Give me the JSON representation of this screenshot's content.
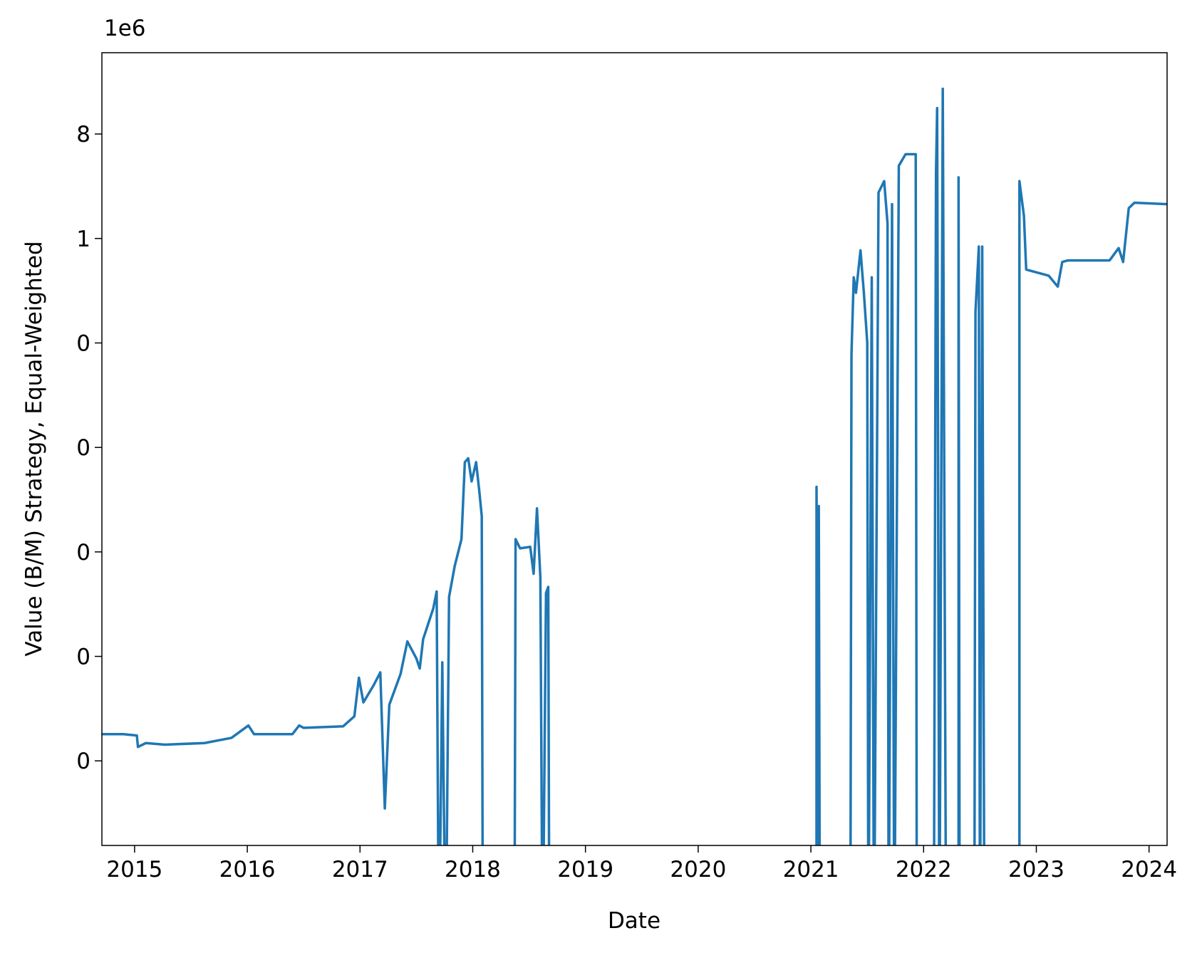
{
  "chart_data": {
    "type": "line",
    "x_label": "Date",
    "y_label": "Value (B/M) Strategy, Equal-Weighted",
    "y_offset_label": "1e6",
    "y_scale": "log",
    "grid": false,
    "xlim": [
      2014.71,
      2024.16
    ],
    "xticks": [
      2015,
      2016,
      2017,
      2018,
      2019,
      2020,
      2021,
      2022,
      2023,
      2024
    ],
    "ylim": [
      1.55,
      60000000
    ],
    "yticks": [
      {
        "value": 10,
        "label": "0"
      },
      {
        "value": 100,
        "label": "0"
      },
      {
        "value": 1000,
        "label": "0"
      },
      {
        "value": 10000,
        "label": "0"
      },
      {
        "value": 100000,
        "label": "0"
      },
      {
        "value": 1000000,
        "label": "1"
      },
      {
        "value": 10000000,
        "label": "8"
      }
    ],
    "series": [
      {
        "color": "#1f77b4",
        "x": [
          2014.71,
          2014.9,
          2015.02,
          2015.03,
          2015.1,
          2015.27,
          2015.62,
          2015.86,
          2016.01,
          2016.06,
          2016.4,
          2016.46,
          2016.5,
          2016.85,
          2016.95,
          2016.99,
          2017.03,
          2017.12,
          2017.18,
          2017.22,
          2017.26,
          2017.36,
          2017.42,
          2017.5,
          2017.53,
          2017.56,
          2017.65,
          2017.68,
          2017.7,
          2017.73,
          2017.76,
          2017.79,
          2017.84,
          2017.9,
          2017.93,
          2017.96,
          2017.99,
          2018.03,
          2018.06,
          2018.08,
          2018.09,
          2018.37,
          2018.38,
          2018.42,
          2018.51,
          2018.54,
          2018.57,
          2018.6,
          2018.62,
          2018.65,
          2018.67,
          2018.68,
          2021.05,
          2021.05,
          2021.07,
          2021.07,
          2021.08,
          2021.35,
          2021.36,
          2021.38,
          2021.4,
          2021.44,
          2021.47,
          2021.5,
          2021.51,
          2021.54,
          2021.56,
          2021.6,
          2021.65,
          2021.68,
          2021.69,
          2021.72,
          2021.74,
          2021.78,
          2021.84,
          2021.93,
          2021.94,
          2022.09,
          2022.11,
          2022.12,
          2022.14,
          2022.17,
          2022.2,
          2022.31,
          2022.31,
          2022.32,
          2022.45,
          2022.46,
          2022.49,
          2022.5,
          2022.52,
          2022.54,
          2022.85,
          2022.85,
          2022.89,
          2022.91,
          2023.11,
          2023.19,
          2023.23,
          2023.28,
          2023.65,
          2023.73,
          2023.77,
          2023.82,
          2023.87,
          2024.16
        ],
        "values": [
          18,
          18,
          17.5,
          13.6,
          14.8,
          14.3,
          14.8,
          16.6,
          21.8,
          18,
          18,
          21.8,
          20.7,
          21.4,
          26.7,
          62.5,
          36.3,
          52.7,
          70.3,
          3.5,
          34.5,
          68,
          139,
          95.5,
          76.6,
          146,
          288,
          418,
          0.1,
          87.7,
          0.1,
          371,
          731,
          1324,
          7228,
          7870,
          4730,
          7228,
          3660,
          2200,
          0.1,
          0.1,
          1324,
          1082,
          1119,
          618,
          2612,
          568,
          0.1,
          404,
          462,
          0.1,
          0.1,
          4198,
          0.1,
          2746,
          0.1,
          0.1,
          77800,
          424600,
          302000,
          769000,
          302000,
          100500,
          0.1,
          424600,
          0.1,
          2750000,
          3540000,
          1390000,
          0.1,
          2130000,
          0.1,
          4970000,
          6410000,
          6410000,
          0.1,
          0.1,
          4200000,
          17700000,
          0.1,
          27100000,
          0.1,
          0.1,
          3850000,
          0.1,
          0.1,
          197700,
          837000,
          0.1,
          837000,
          0.1,
          0.1,
          3540000,
          1650000,
          504000,
          440000,
          346000,
          596000,
          617000,
          617000,
          809000,
          596000,
          1950000,
          2200000,
          2130000
        ]
      }
    ]
  }
}
